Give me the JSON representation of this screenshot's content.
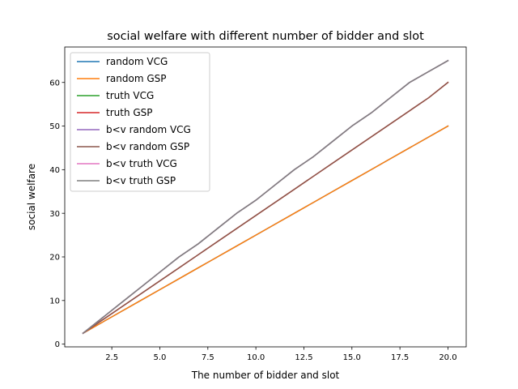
{
  "chart_data": {
    "type": "line",
    "title": "social welfare with different number of bidder and slot",
    "xlabel": "The number of bidder and slot",
    "ylabel": "social welfare",
    "xlim": [
      0.05,
      20.95
    ],
    "ylim": [
      -0.625,
      68.125
    ],
    "xticks": [
      "2.5",
      "5.0",
      "7.5",
      "10.0",
      "12.5",
      "15.0",
      "17.5",
      "20.0"
    ],
    "yticks": [
      "0",
      "10",
      "20",
      "30",
      "40",
      "50",
      "60"
    ],
    "grid": false,
    "legend_position": "upper left",
    "x": [
      1,
      2,
      3,
      4,
      5,
      6,
      7,
      8,
      9,
      10,
      11,
      12,
      13,
      14,
      15,
      16,
      17,
      18,
      19,
      20
    ],
    "series": [
      {
        "name": "random VCG",
        "color": "#1f77b4",
        "values": [
          2.5,
          5,
          7.5,
          10,
          12.5,
          15,
          17.5,
          20,
          22.5,
          25,
          27.5,
          30,
          32.5,
          35,
          37.5,
          40,
          42.5,
          45,
          47.5,
          50
        ]
      },
      {
        "name": "random GSP",
        "color": "#ff7f0e",
        "values": [
          2.5,
          5,
          7.5,
          10,
          12.5,
          15,
          17.5,
          20,
          22.5,
          25,
          27.5,
          30,
          32.5,
          35,
          37.5,
          40,
          42.5,
          45,
          47.5,
          50
        ]
      },
      {
        "name": "truth VCG",
        "color": "#2ca02c",
        "values": [
          2.5,
          6,
          9.5,
          13,
          16.5,
          20,
          23,
          26.5,
          30,
          33,
          36.5,
          40,
          43,
          46.5,
          50,
          53,
          56.5,
          60,
          62.5,
          65
        ]
      },
      {
        "name": "truth GSP",
        "color": "#d62728",
        "values": [
          2.5,
          5.5,
          8.5,
          11.5,
          14.5,
          17.5,
          20.5,
          23.5,
          26.5,
          29.5,
          32.5,
          35.5,
          38.5,
          41.5,
          44.5,
          47.5,
          50.5,
          53.5,
          56.5,
          60
        ]
      },
      {
        "name": "b<v random VCG",
        "color": "#9467bd",
        "values": [
          2.5,
          6,
          9.5,
          13,
          16.5,
          20,
          23,
          26.5,
          30,
          33,
          36.5,
          40,
          43,
          46.5,
          50,
          53,
          56.5,
          60,
          62.5,
          65
        ]
      },
      {
        "name": "b<v random GSP",
        "color": "#8c564b",
        "values": [
          2.5,
          5.5,
          8.5,
          11.5,
          14.5,
          17.5,
          20.5,
          23.5,
          26.5,
          29.5,
          32.5,
          35.5,
          38.5,
          41.5,
          44.5,
          47.5,
          50.5,
          53.5,
          56.5,
          60
        ]
      },
      {
        "name": "b<v truth VCG",
        "color": "#e377c2",
        "values": [
          2.5,
          6,
          9.5,
          13,
          16.5,
          20,
          23,
          26.5,
          30,
          33,
          36.5,
          40,
          43,
          46.5,
          50,
          53,
          56.5,
          60,
          62.5,
          65
        ]
      },
      {
        "name": "b<v truth GSP",
        "color": "#7f7f7f",
        "values": [
          2.5,
          6,
          9.5,
          13,
          16.5,
          20,
          23,
          26.5,
          30,
          33,
          36.5,
          40,
          43,
          46.5,
          50,
          53,
          56.5,
          60,
          62.5,
          65
        ]
      }
    ]
  }
}
